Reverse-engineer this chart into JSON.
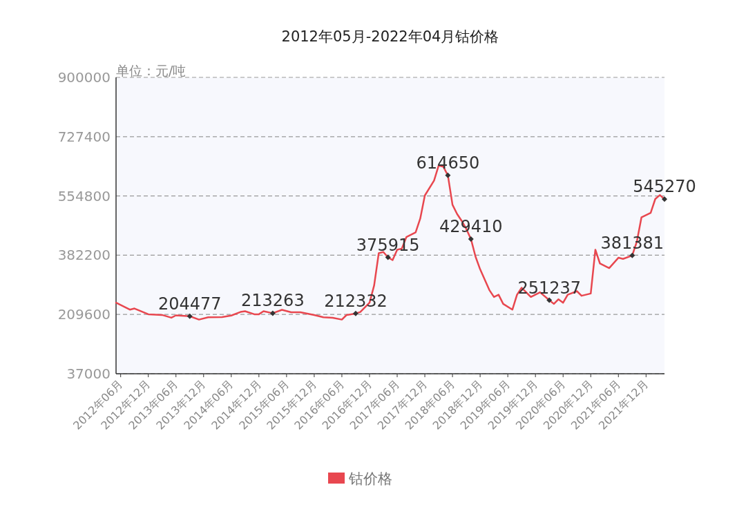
{
  "chart_data": {
    "type": "line",
    "title": "2012年05月-2022年04月钴价格",
    "ylabel": "单位：元/吨",
    "x": [
      "2012-05",
      "2012-08",
      "2012-09",
      "2012-12",
      "2013-03",
      "2013-05",
      "2013-06",
      "2013-09",
      "2013-11",
      "2014-01",
      "2014-04",
      "2014-06",
      "2014-08",
      "2014-09",
      "2014-11",
      "2014-12",
      "2015-01",
      "2015-03",
      "2015-05",
      "2015-07",
      "2015-09",
      "2015-12",
      "2016-02",
      "2016-04",
      "2016-06",
      "2016-07",
      "2016-09",
      "2016-10",
      "2016-12",
      "2017-01",
      "2017-02",
      "2017-03",
      "2017-04",
      "2017-05",
      "2017-06",
      "2017-07",
      "2017-08",
      "2017-10",
      "2017-11",
      "2017-12",
      "2018-02",
      "2018-03",
      "2018-04",
      "2018-05",
      "2018-06",
      "2018-07",
      "2018-08",
      "2018-09",
      "2018-10",
      "2018-11",
      "2018-12",
      "2019-02",
      "2019-03",
      "2019-04",
      "2019-05",
      "2019-07",
      "2019-08",
      "2019-09",
      "2019-11",
      "2020-01",
      "2020-03",
      "2020-04",
      "2020-05",
      "2020-06",
      "2020-07",
      "2020-09",
      "2020-10",
      "2020-12",
      "2021-01",
      "2021-02",
      "2021-04",
      "2021-06",
      "2021-07",
      "2021-09",
      "2021-10",
      "2021-11",
      "2022-01",
      "2022-02",
      "2022-03",
      "2022-04"
    ],
    "series": [
      {
        "name": "钴价格",
        "color": "#e8474f",
        "values": [
          243800,
          223700,
          227000,
          210200,
          208200,
          200100,
          207000,
          204477,
          194700,
          201400,
          202000,
          206500,
          216900,
          219000,
          210200,
          210200,
          219000,
          213263,
          223000,
          216000,
          216000,
          208000,
          201400,
          200100,
          194700,
          208000,
          212332,
          216900,
          243800,
          294200,
          388100,
          391500,
          375915,
          367900,
          398100,
          401400,
          435000,
          448500,
          488800,
          556000,
          599500,
          643300,
          640000,
          614650,
          529000,
          502300,
          482100,
          458600,
          429410,
          378000,
          341100,
          280700,
          260600,
          267200,
          240400,
          223700,
          267200,
          287400,
          260600,
          274100,
          251237,
          240400,
          253900,
          243800,
          267200,
          277400,
          264000,
          270600,
          398100,
          357900,
          344600,
          374800,
          371500,
          381381,
          421700,
          492200,
          505600,
          545900,
          557300,
          545270
        ],
        "value_labels": [
          null,
          null,
          null,
          null,
          null,
          null,
          null,
          "204477",
          null,
          null,
          null,
          null,
          null,
          null,
          null,
          null,
          null,
          "213263",
          null,
          null,
          null,
          null,
          null,
          null,
          null,
          null,
          "212332",
          null,
          null,
          null,
          null,
          null,
          "375915",
          null,
          null,
          null,
          null,
          null,
          null,
          null,
          null,
          null,
          null,
          "614650",
          null,
          null,
          null,
          null,
          "429410",
          null,
          null,
          null,
          null,
          null,
          null,
          null,
          null,
          null,
          null,
          null,
          "251237",
          null,
          null,
          null,
          null,
          null,
          null,
          null,
          null,
          null,
          null,
          null,
          null,
          "381381",
          null,
          null,
          null,
          null,
          null,
          "545270"
        ]
      }
    ],
    "xlim": [
      "2012-05",
      "2022-04"
    ],
    "xticks": [
      {
        "value": "2012-06",
        "label": "2012年06月"
      },
      {
        "value": "2012-12",
        "label": "2012年12月"
      },
      {
        "value": "2013-06",
        "label": "2013年06月"
      },
      {
        "value": "2013-12",
        "label": "2013年12月"
      },
      {
        "value": "2014-06",
        "label": "2014年06月"
      },
      {
        "value": "2014-12",
        "label": "2014年12月"
      },
      {
        "value": "2015-06",
        "label": "2015年06月"
      },
      {
        "value": "2015-12",
        "label": "2015年12月"
      },
      {
        "value": "2016-06",
        "label": "2016年06月"
      },
      {
        "value": "2016-12",
        "label": "2016年12月"
      },
      {
        "value": "2017-06",
        "label": "2017年06月"
      },
      {
        "value": "2017-12",
        "label": "2017年12月"
      },
      {
        "value": "2018-06",
        "label": "2018年06月"
      },
      {
        "value": "2018-12",
        "label": "2018年12月"
      },
      {
        "value": "2019-06",
        "label": "2019年06月"
      },
      {
        "value": "2019-12",
        "label": "2019年12月"
      },
      {
        "value": "2020-06",
        "label": "2020年06月"
      },
      {
        "value": "2020-12",
        "label": "2020年12月"
      },
      {
        "value": "2021-06",
        "label": "2021年06月"
      },
      {
        "value": "2021-12",
        "label": "2021年12月"
      }
    ],
    "ylim": [
      37000,
      900000
    ],
    "yticks": [
      37000,
      209600,
      382200,
      554800,
      727400,
      900000
    ],
    "grid": "y",
    "legend": "bottom"
  }
}
